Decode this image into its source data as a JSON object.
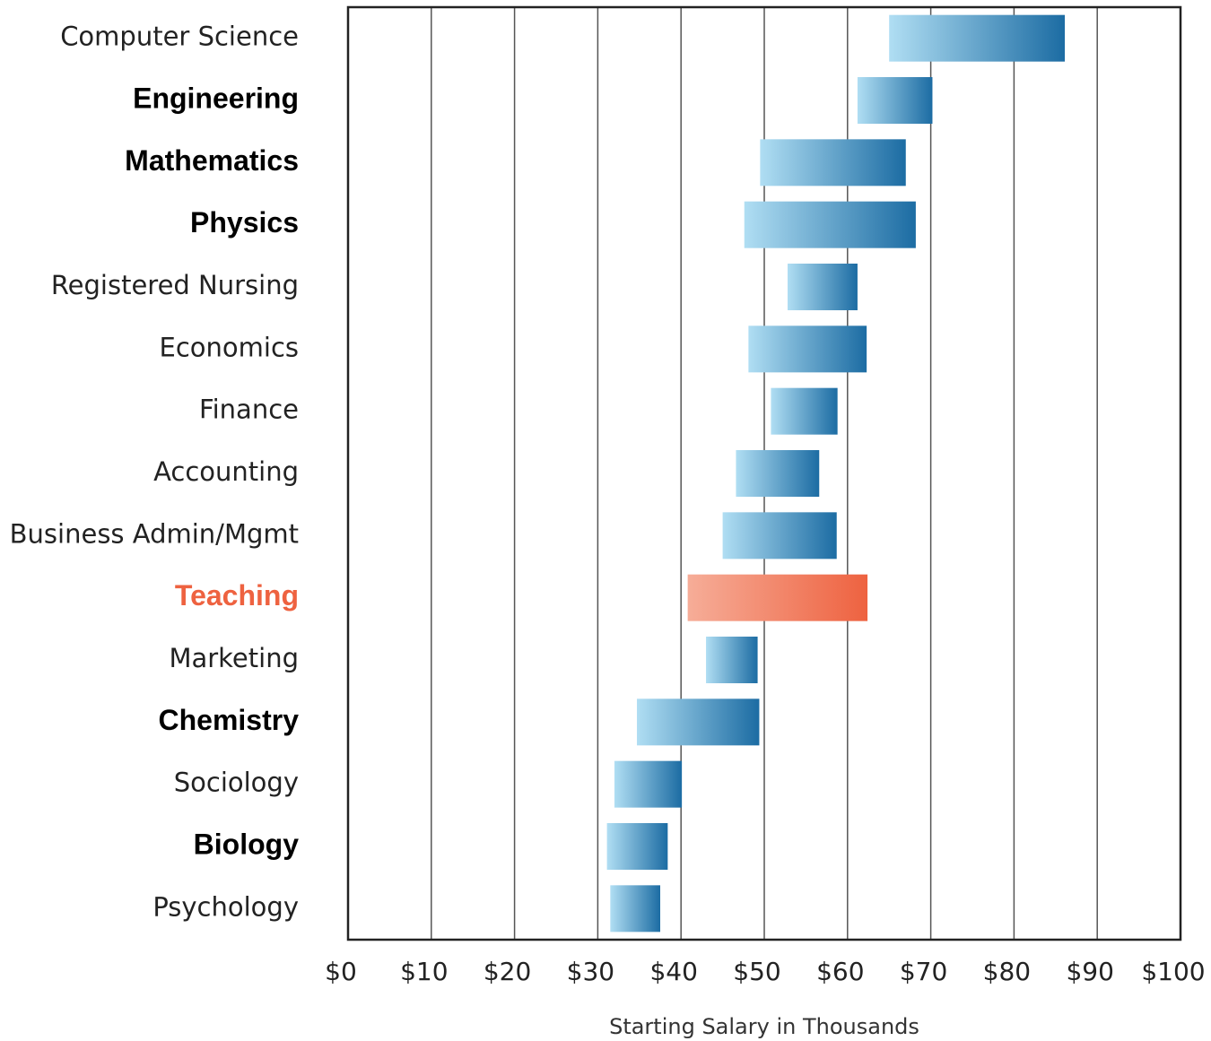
{
  "chart_data": {
    "type": "range_bar",
    "categories": [
      "Computer Science",
      "Engineering",
      "Mathematics",
      "Physics",
      "Registered Nursing",
      "Economics",
      "Finance",
      "Accounting",
      "Business Admin/Mgmt",
      "Teaching",
      "Marketing",
      "Chemistry",
      "Sociology",
      "Biology",
      "Psychology"
    ],
    "low": [
      65,
      61.2,
      49.5,
      47.6,
      52.8,
      48.1,
      50.8,
      46.6,
      45,
      40.8,
      43,
      34.7,
      32,
      31.1,
      31.5
    ],
    "high": [
      86.1,
      70.2,
      67,
      68.2,
      61.2,
      62.3,
      58.8,
      56.6,
      58.7,
      62.4,
      49.2,
      49.4,
      40.1,
      38.4,
      37.5
    ],
    "bar_colors": [
      [
        "#b0def3",
        "#1c6ca3"
      ],
      [
        "#b0def3",
        "#1c6ca3"
      ],
      [
        "#b0def3",
        "#1c6ca3"
      ],
      [
        "#b0def3",
        "#1c6ca3"
      ],
      [
        "#b0def3",
        "#1c6ca3"
      ],
      [
        "#b0def3",
        "#1c6ca3"
      ],
      [
        "#b0def3",
        "#1c6ca3"
      ],
      [
        "#b0def3",
        "#1c6ca3"
      ],
      [
        "#b0def3",
        "#1c6ca3"
      ],
      [
        "#f6ad98",
        "#ee6240"
      ],
      [
        "#b0def3",
        "#1c6ca3"
      ],
      [
        "#b0def3",
        "#1c6ca3"
      ],
      [
        "#b0def3",
        "#1c6ca3"
      ],
      [
        "#b0def3",
        "#1c6ca3"
      ],
      [
        "#b0def3",
        "#1c6ca3"
      ]
    ],
    "label_bold": [
      false,
      true,
      true,
      true,
      false,
      false,
      false,
      false,
      false,
      true,
      false,
      true,
      false,
      true,
      false
    ],
    "label_colors": [
      "#222222",
      "#000000",
      "#000000",
      "#000000",
      "#222222",
      "#222222",
      "#222222",
      "#222222",
      "#222222",
      "#ee6240",
      "#222222",
      "#000000",
      "#222222",
      "#000000",
      "#222222"
    ],
    "xlim": [
      0,
      100
    ],
    "xticks": [
      {
        "value": 0,
        "label": "$0"
      },
      {
        "value": 10,
        "label": "$10"
      },
      {
        "value": 20,
        "label": "$20"
      },
      {
        "value": 30,
        "label": "$30"
      },
      {
        "value": 40,
        "label": "$40"
      },
      {
        "value": 50,
        "label": "$50"
      },
      {
        "value": 60,
        "label": "$60"
      },
      {
        "value": 70,
        "label": "$70"
      },
      {
        "value": 80,
        "label": "$80"
      },
      {
        "value": 90,
        "label": "$90"
      },
      {
        "value": 100,
        "label": "$100"
      }
    ],
    "grid": true,
    "xlabel": "Starting Salary in Thousands"
  }
}
